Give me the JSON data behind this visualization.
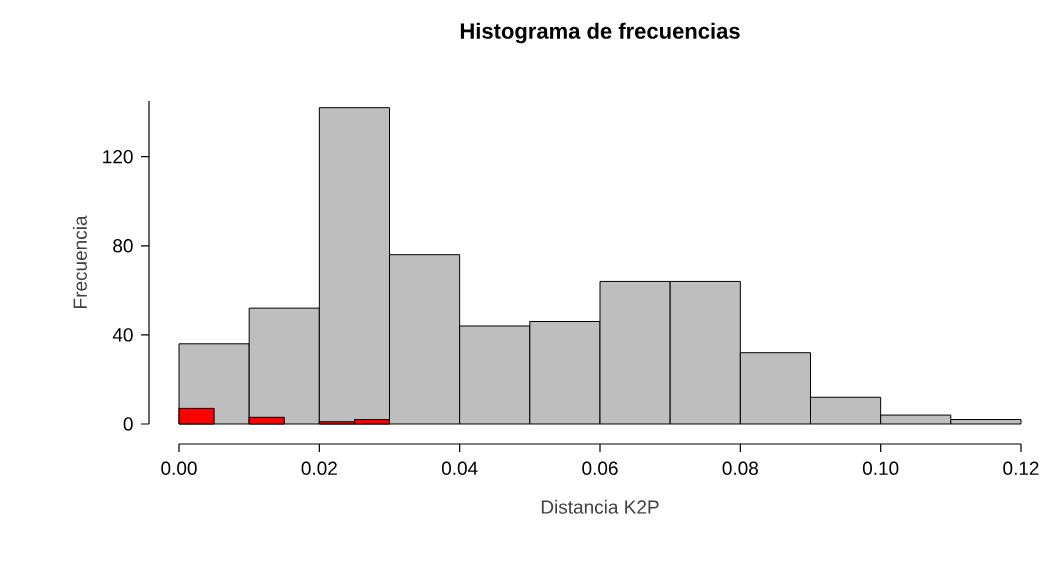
{
  "chart_data": {
    "type": "histogram",
    "title": "Histograma de frecuencias",
    "xlabel": "Distancia K2P",
    "ylabel": "Frecuencia",
    "series": [
      {
        "color": "#bebebe",
        "values": [
          36,
          52,
          142,
          76,
          44,
          46,
          64,
          64,
          32,
          12,
          4,
          2
        ]
      },
      {
        "color": "#ff0000",
        "bins": [
          0,
          0.005,
          0.01,
          0.015,
          0.02,
          0.025,
          0.03
        ],
        "values": [
          7,
          0,
          3,
          0,
          1,
          2
        ]
      }
    ],
    "xlim": [
      0,
      0.12
    ],
    "ylim": [
      0,
      145
    ],
    "xticks": [
      {
        "value": 0,
        "label": "0.00"
      },
      {
        "value": 0.02,
        "label": "0.02"
      },
      {
        "value": 0.04,
        "label": "0.04"
      },
      {
        "value": 0.06,
        "label": "0.06"
      },
      {
        "value": 0.08,
        "label": "0.08"
      },
      {
        "value": 0.1,
        "label": "0.10"
      },
      {
        "value": 0.12,
        "label": "0.12"
      }
    ],
    "yticks": [
      {
        "value": 0,
        "label": "0"
      },
      {
        "value": 40,
        "label": "40"
      },
      {
        "value": 80,
        "label": "80"
      },
      {
        "value": 120,
        "label": "120"
      }
    ],
    "bins": [
      0,
      0.01,
      0.02,
      0.03,
      0.04,
      0.05,
      0.06,
      0.07,
      0.08,
      0.09,
      0.1,
      0.11,
      0.12
    ]
  }
}
